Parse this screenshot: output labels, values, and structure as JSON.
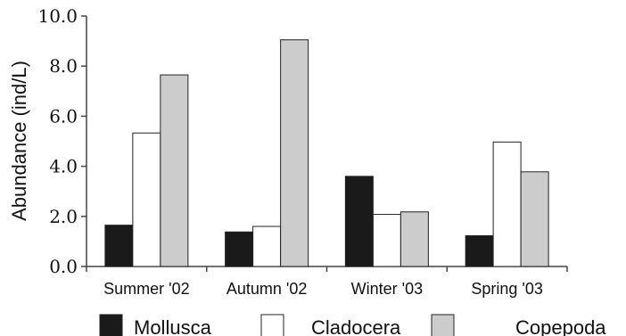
{
  "chart_data": {
    "type": "bar",
    "categories": [
      "Summer '02",
      "Autumn '02",
      "Winter '03",
      "Spring '03"
    ],
    "series": [
      {
        "name": "Mollusca",
        "color": "#1a1a1a",
        "values": [
          1.65,
          1.38,
          3.6,
          1.23
        ]
      },
      {
        "name": "Cladocera",
        "color": "#ffffff",
        "values": [
          5.33,
          1.6,
          2.08,
          4.97
        ]
      },
      {
        "name": "Copepoda",
        "color": "#cccccc",
        "values": [
          7.65,
          9.05,
          2.18,
          3.78
        ]
      }
    ],
    "yticks": [
      "0.0",
      "2.0",
      "4.0",
      "6.0",
      "8.0",
      "10.0"
    ],
    "ylabel": "Abundance (ind/L)",
    "xlabel": "",
    "ylim": [
      0,
      10
    ],
    "grid": false,
    "legend_position": "bottom"
  }
}
